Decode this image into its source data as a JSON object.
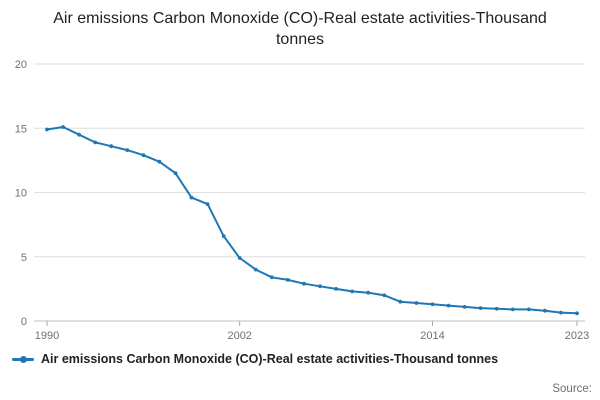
{
  "page": {
    "source_label": "Source:"
  },
  "legend": {
    "label": "Air emissions Carbon Monoxide (CO)-Real estate activities-Thousand tonnes"
  },
  "chart_data": {
    "type": "line",
    "title": "Air emissions Carbon Monoxide (CO)-Real estate activities-Thousand tonnes",
    "xlabel": "",
    "ylabel": "",
    "ylim": [
      0,
      20
    ],
    "yticks": [
      0,
      5,
      10,
      15,
      20
    ],
    "xticks": [
      1990,
      2002,
      2014,
      2023
    ],
    "grid": "horizontal",
    "legend_position": "bottom-left",
    "line_color": "#1f77b4",
    "x": [
      1990,
      1991,
      1992,
      1993,
      1994,
      1995,
      1996,
      1997,
      1998,
      1999,
      2000,
      2001,
      2002,
      2003,
      2004,
      2005,
      2006,
      2007,
      2008,
      2009,
      2010,
      2011,
      2012,
      2013,
      2014,
      2015,
      2016,
      2017,
      2018,
      2019,
      2020,
      2021,
      2022,
      2023
    ],
    "values": [
      14.9,
      15.1,
      14.5,
      13.9,
      13.6,
      13.3,
      12.9,
      12.4,
      11.5,
      9.6,
      9.1,
      6.6,
      4.9,
      4.0,
      3.4,
      3.2,
      2.9,
      2.7,
      2.5,
      2.3,
      2.2,
      2.0,
      1.5,
      1.4,
      1.3,
      1.2,
      1.1,
      1.0,
      0.95,
      0.9,
      0.9,
      0.8,
      0.65,
      0.6
    ]
  }
}
